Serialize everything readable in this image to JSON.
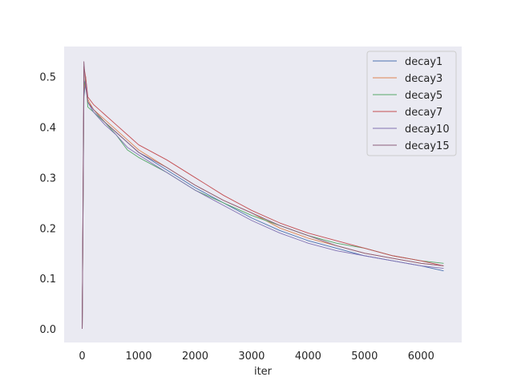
{
  "chart_data": {
    "type": "line",
    "title": "",
    "xlabel": "iter",
    "ylabel": "",
    "xlim": [
      -320,
      6720
    ],
    "ylim": [
      -0.027,
      0.56
    ],
    "xticks": [
      0,
      1000,
      2000,
      3000,
      4000,
      5000,
      6000
    ],
    "yticks": [
      0.0,
      0.1,
      0.2,
      0.3,
      0.4,
      0.5
    ],
    "ytick_labels": [
      "0.0",
      "0.1",
      "0.2",
      "0.3",
      "0.4",
      "0.5"
    ],
    "grid": false,
    "legend_position": "top-right",
    "series": [
      {
        "name": "decay1",
        "color": "#4c72b0",
        "x": [
          0,
          30,
          60,
          100,
          200,
          400,
          600,
          800,
          1000,
          1500,
          2000,
          2500,
          3000,
          3500,
          4000,
          4500,
          5000,
          5500,
          6000,
          6400
        ],
        "y": [
          0.0,
          0.46,
          0.49,
          0.45,
          0.43,
          0.41,
          0.39,
          0.37,
          0.35,
          0.315,
          0.28,
          0.25,
          0.22,
          0.195,
          0.175,
          0.16,
          0.145,
          0.135,
          0.125,
          0.115
        ]
      },
      {
        "name": "decay3",
        "color": "#dd8452",
        "x": [
          0,
          30,
          60,
          100,
          200,
          400,
          600,
          800,
          1000,
          1500,
          2000,
          2500,
          3000,
          3500,
          4000,
          4500,
          5000,
          5500,
          6000,
          6400
        ],
        "y": [
          0.0,
          0.47,
          0.5,
          0.455,
          0.435,
          0.415,
          0.395,
          0.375,
          0.355,
          0.32,
          0.285,
          0.255,
          0.23,
          0.2,
          0.18,
          0.165,
          0.15,
          0.14,
          0.13,
          0.125
        ]
      },
      {
        "name": "decay5",
        "color": "#55a868",
        "x": [
          0,
          30,
          60,
          100,
          200,
          400,
          600,
          800,
          1000,
          1500,
          2000,
          2500,
          3000,
          3500,
          4000,
          4500,
          5000,
          5500,
          6000,
          6400
        ],
        "y": [
          0.0,
          0.48,
          0.5,
          0.44,
          0.43,
          0.41,
          0.385,
          0.355,
          0.34,
          0.31,
          0.275,
          0.25,
          0.225,
          0.205,
          0.185,
          0.17,
          0.16,
          0.145,
          0.135,
          0.13
        ]
      },
      {
        "name": "decay7",
        "color": "#c44e52",
        "x": [
          0,
          30,
          60,
          100,
          200,
          400,
          600,
          800,
          1000,
          1500,
          2000,
          2500,
          3000,
          3500,
          4000,
          4500,
          5000,
          5500,
          6000,
          6400
        ],
        "y": [
          0.0,
          0.52,
          0.5,
          0.46,
          0.445,
          0.425,
          0.405,
          0.385,
          0.365,
          0.335,
          0.3,
          0.265,
          0.235,
          0.21,
          0.19,
          0.175,
          0.16,
          0.145,
          0.135,
          0.125
        ]
      },
      {
        "name": "decay10",
        "color": "#8172b3",
        "x": [
          0,
          30,
          60,
          100,
          200,
          400,
          600,
          800,
          1000,
          1500,
          2000,
          2500,
          3000,
          3500,
          4000,
          4500,
          5000,
          5500,
          6000,
          6400
        ],
        "y": [
          0.0,
          0.49,
          0.49,
          0.45,
          0.43,
          0.405,
          0.385,
          0.36,
          0.345,
          0.31,
          0.275,
          0.245,
          0.215,
          0.19,
          0.17,
          0.155,
          0.145,
          0.135,
          0.125,
          0.12
        ]
      },
      {
        "name": "decay15",
        "color": "#8c5e7a",
        "x": [
          0,
          30,
          60,
          100,
          200,
          400,
          600,
          800,
          1000,
          1500,
          2000,
          2500,
          3000,
          3500,
          4000,
          4500,
          5000,
          5500,
          6000,
          6400
        ],
        "y": [
          0.0,
          0.53,
          0.48,
          0.45,
          0.435,
          0.41,
          0.39,
          0.37,
          0.35,
          0.32,
          0.285,
          0.255,
          0.23,
          0.205,
          0.185,
          0.165,
          0.15,
          0.14,
          0.13,
          0.125
        ]
      }
    ]
  }
}
